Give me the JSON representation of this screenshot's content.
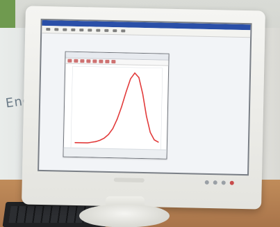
{
  "scene": {
    "box_text": "Enc",
    "monitor_brand_text": "",
    "monitor_model_text": ""
  },
  "screen": {
    "app_window": {
      "title": "",
      "menu_items": [
        "",
        "",
        "",
        "",
        "",
        "",
        "",
        "",
        "",
        ""
      ]
    },
    "plot_window": {
      "title": "",
      "curve_color": "#e23b3b"
    }
  },
  "chart_data": {
    "type": "line",
    "title": "",
    "xlabel": "",
    "ylabel": "",
    "x": [
      0,
      5,
      10,
      15,
      20,
      25,
      30,
      35,
      40,
      45,
      50,
      55,
      60,
      65,
      70,
      75,
      80,
      85,
      90,
      95,
      100
    ],
    "series": [
      {
        "values": [
          2,
          2,
          2,
          2,
          3,
          4,
          6,
          9,
          14,
          22,
          35,
          52,
          72,
          90,
          98,
          92,
          70,
          40,
          18,
          8,
          5
        ]
      }
    ],
    "xlim": [
      0,
      100
    ],
    "ylim": [
      0,
      100
    ],
    "grid": false,
    "legend": "none"
  }
}
